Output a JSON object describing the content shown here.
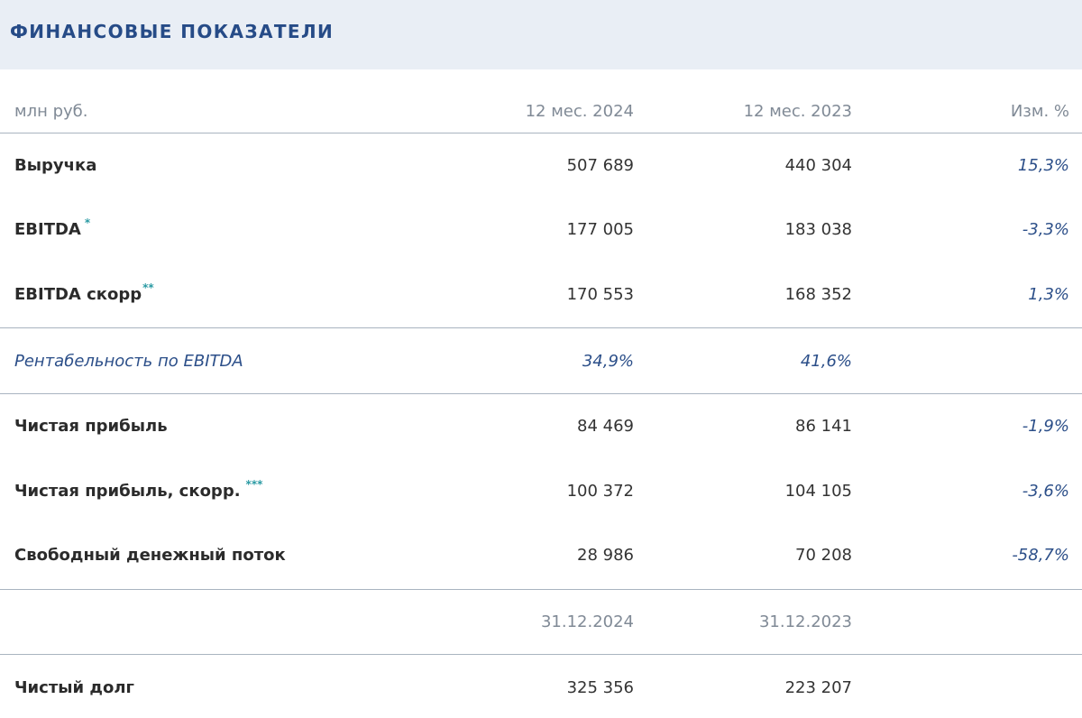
{
  "title": "ФИНАНСОВЫЕ ПОКАЗАТЕЛИ",
  "header": {
    "units": "млн руб.",
    "col1": "12 мес. 2024",
    "col2": "12 мес. 2023",
    "col3": "Изм. %"
  },
  "rows": [
    {
      "label": "Выручка",
      "sup": "",
      "v2024": "507 689",
      "v2023": "440 304",
      "change": "15,3%"
    },
    {
      "label": "EBITDA",
      "sup": "*",
      "v2024": "177 005",
      "v2023": "183 038",
      "change": "-3,3%"
    },
    {
      "label": "EBITDA скорр",
      "sup": "**",
      "v2024": "170 553",
      "v2023": "168 352",
      "change": "1,3%"
    }
  ],
  "margin_row": {
    "label": "Рентабельность по EBITDA",
    "v2024": "34,9%",
    "v2023": "41,6%"
  },
  "rows2": [
    {
      "label": "Чистая прибыль",
      "sup": "",
      "v2024": "84 469",
      "v2023": "86 141",
      "change": "-1,9%"
    },
    {
      "label": "Чистая прибыль, скорр.",
      "sup": "***",
      "v2024": "100 372",
      "v2023": "104 105",
      "change": "-3,6%"
    },
    {
      "label": "Свободный денежный поток",
      "sup": "",
      "v2024": "28 986",
      "v2023": "70 208",
      "change": "-58,7%"
    }
  ],
  "date_header": {
    "col1": "31.12.2024",
    "col2": "31.12.2023"
  },
  "debt_row": {
    "label": "Чистый долг",
    "v2024": "325 356",
    "v2023": "223 207"
  }
}
